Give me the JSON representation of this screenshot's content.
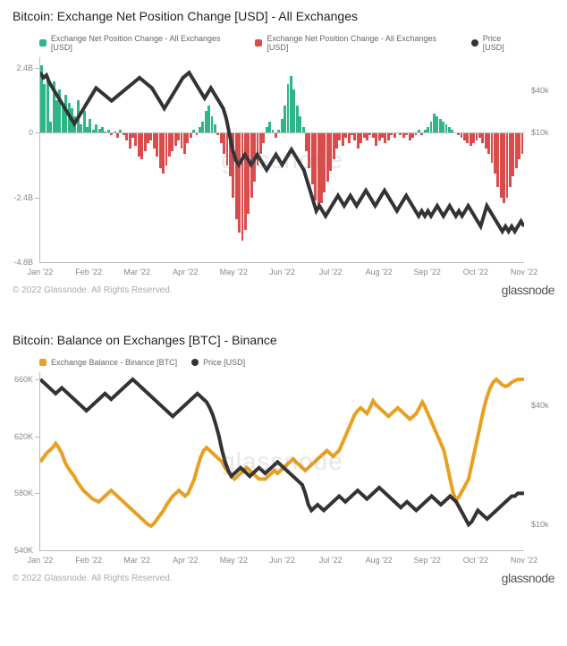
{
  "chart1": {
    "title": "Bitcoin: Exchange Net Position Change [USD] - All Exchanges",
    "legend": [
      {
        "label": "Exchange Net Position Change - All Exchanges [USD]",
        "color": "#2fb58a",
        "shape": "square"
      },
      {
        "label": "Exchange Net Position Change - All Exchanges [USD]",
        "color": "#d94c4c",
        "shape": "square"
      },
      {
        "label": "Price [USD]",
        "color": "#333333",
        "shape": "circle"
      }
    ],
    "y_left": {
      "min": -4.8,
      "max": 2.8,
      "ticks": [
        2.4,
        0,
        -2.4,
        -4.8
      ],
      "tick_labels": [
        "2.4B",
        "0",
        "-2.4B",
        "-4.8B"
      ],
      "zero": 0
    },
    "y_right": {
      "ticks": [
        1.58,
        0.0
      ],
      "tick_labels": [
        "$40k",
        "$10k"
      ]
    },
    "x_labels": [
      "Jan '22",
      "Feb '22",
      "Mar '22",
      "Apr '22",
      "May '22",
      "Jun '22",
      "Jul '22",
      "Aug '22",
      "Sep '22",
      "Oct '22",
      "Nov '22"
    ],
    "bars": [
      2.5,
      1.8,
      2.0,
      0.4,
      1.9,
      1.2,
      1.6,
      1.0,
      1.4,
      1.1,
      0.9,
      0.6,
      1.2,
      0.3,
      0.8,
      0.2,
      0.5,
      0.1,
      0.3,
      0.15,
      0.2,
      0.05,
      0.1,
      -0.1,
      0.05,
      -0.2,
      0.1,
      -0.1,
      -0.3,
      -0.6,
      -0.2,
      -0.5,
      -0.9,
      -1.0,
      -0.7,
      -0.4,
      -0.3,
      -0.6,
      -0.9,
      -1.3,
      -1.5,
      -1.2,
      -0.9,
      -0.7,
      -0.5,
      -0.3,
      -0.6,
      -0.8,
      -0.4,
      -0.2,
      0.1,
      -0.1,
      0.2,
      0.4,
      0.8,
      1.0,
      0.6,
      0.3,
      -0.1,
      -0.4,
      -0.8,
      -1.2,
      -1.6,
      -2.4,
      -3.2,
      -3.7,
      -4.0,
      -3.6,
      -3.0,
      -2.4,
      -1.8,
      -1.2,
      -0.8,
      -0.4,
      0.2,
      0.4,
      0.1,
      -0.2,
      0.1,
      0.5,
      1.0,
      1.8,
      2.1,
      1.6,
      1.0,
      0.6,
      0.2,
      -0.7,
      -1.3,
      -1.9,
      -2.5,
      -2.8,
      -2.6,
      -2.2,
      -1.8,
      -1.4,
      -1.0,
      -0.6,
      -0.3,
      -0.5,
      -0.2,
      -0.4,
      -0.1,
      -0.3,
      -0.6,
      -0.4,
      -0.2,
      -0.3,
      -0.1,
      -0.2,
      -0.5,
      -0.3,
      -0.2,
      -0.4,
      -0.3,
      -0.1,
      -0.2,
      0.0,
      -0.1,
      -0.2,
      -0.1,
      -0.3,
      -0.2,
      -0.1,
      0.1,
      -0.1,
      0.1,
      0.2,
      0.4,
      0.7,
      0.6,
      0.5,
      0.4,
      0.3,
      0.2,
      0.1,
      0.0,
      -0.1,
      -0.2,
      -0.3,
      -0.4,
      -0.5,
      -0.4,
      -0.3,
      -0.2,
      -0.4,
      -0.6,
      -0.8,
      -1.1,
      -1.5,
      -2.0,
      -2.4,
      -2.6,
      -2.4,
      -2.0,
      -1.6,
      -1.3,
      -1.0,
      -0.8
    ],
    "price": [
      47,
      46,
      46.5,
      45,
      44,
      43,
      42,
      41,
      40,
      39,
      38,
      37,
      38,
      39,
      40,
      41,
      42,
      43,
      44,
      43.5,
      43,
      42.5,
      42,
      41.5,
      42,
      42.5,
      43,
      43.5,
      44,
      44.5,
      45,
      45.5,
      46,
      45.5,
      45,
      44.5,
      44,
      43,
      42,
      41,
      40,
      41,
      42,
      43,
      44,
      45,
      46,
      46.5,
      47,
      46,
      45,
      44,
      43,
      42,
      43,
      44,
      43,
      42,
      41,
      40,
      38,
      35,
      32,
      30,
      29,
      30,
      31,
      30,
      29,
      30,
      31,
      30,
      29,
      28,
      29,
      30,
      31,
      30,
      29,
      30,
      31,
      32,
      31,
      30,
      29,
      28,
      26,
      24,
      22,
      20,
      21,
      20,
      19,
      20,
      21,
      22,
      23,
      22,
      21,
      22,
      23,
      22,
      21,
      22,
      23,
      24,
      23,
      22,
      21,
      22,
      23,
      24,
      23,
      22,
      21,
      20,
      21,
      22,
      23,
      22,
      21,
      20,
      19,
      20,
      19,
      20,
      19,
      20,
      21,
      20,
      19,
      20,
      21,
      20,
      19,
      20,
      19,
      20,
      21,
      20,
      19,
      18,
      17,
      19,
      21,
      20,
      19,
      18,
      17,
      16,
      17,
      16,
      17,
      16,
      17,
      18,
      17
    ],
    "price_range": {
      "min": 10,
      "max": 50
    },
    "bar_color_pos": "#2fb58a",
    "bar_color_neg": "#d94c4c",
    "line_color": "#333333",
    "background": "#ffffff",
    "watermark": "glassnode"
  },
  "chart2": {
    "title": "Bitcoin: Balance on Exchanges [BTC] - Binance",
    "legend": [
      {
        "label": "Exchange Balance - Binance [BTC]",
        "color": "#e8a023",
        "shape": "square"
      },
      {
        "label": "Price [USD]",
        "color": "#333333",
        "shape": "circle"
      }
    ],
    "y_left": {
      "min": 540,
      "max": 665,
      "ticks": [
        660,
        620,
        580,
        540
      ],
      "tick_labels": [
        "660K",
        "620K",
        "580K",
        "540K"
      ]
    },
    "y_right": {
      "ticks": [
        642,
        558
      ],
      "tick_labels": [
        "$40k",
        "$10k"
      ]
    },
    "x_labels": [
      "Jan '22",
      "Feb '22",
      "Mar '22",
      "Apr '22",
      "May '22",
      "Jun '22",
      "Jul '22",
      "Aug '22",
      "Sep '22",
      "Oct '22",
      "Nov '22"
    ],
    "series_balance": [
      602,
      605,
      608,
      610,
      612,
      615,
      612,
      608,
      602,
      598,
      595,
      592,
      588,
      585,
      582,
      580,
      578,
      576,
      575,
      574,
      576,
      578,
      580,
      582,
      580,
      578,
      576,
      574,
      572,
      570,
      568,
      566,
      564,
      562,
      560,
      558,
      557,
      559,
      562,
      565,
      568,
      572,
      575,
      578,
      580,
      582,
      580,
      578,
      580,
      585,
      590,
      598,
      605,
      610,
      612,
      610,
      608,
      606,
      604,
      602,
      598,
      595,
      592,
      590,
      592,
      594,
      596,
      598,
      596,
      594,
      592,
      590,
      590,
      590,
      592,
      594,
      596,
      594,
      596,
      598,
      600,
      602,
      604,
      602,
      600,
      598,
      596,
      598,
      600,
      602,
      604,
      606,
      608,
      610,
      608,
      606,
      608,
      610,
      615,
      620,
      625,
      630,
      635,
      638,
      640,
      638,
      636,
      640,
      645,
      642,
      640,
      638,
      636,
      634,
      636,
      638,
      640,
      638,
      636,
      634,
      632,
      634,
      636,
      640,
      644,
      640,
      635,
      630,
      625,
      620,
      615,
      610,
      600,
      590,
      580,
      575,
      578,
      582,
      586,
      590,
      600,
      610,
      620,
      630,
      640,
      648,
      654,
      658,
      660,
      658,
      656,
      655,
      656,
      658,
      659,
      660,
      660,
      660
    ],
    "series_price": [
      660,
      658,
      656,
      654,
      652,
      650,
      652,
      654,
      652,
      650,
      648,
      646,
      644,
      642,
      640,
      638,
      640,
      642,
      644,
      646,
      648,
      650,
      648,
      646,
      648,
      650,
      652,
      654,
      656,
      658,
      660,
      658,
      656,
      654,
      652,
      650,
      648,
      646,
      644,
      642,
      640,
      638,
      636,
      634,
      636,
      638,
      640,
      642,
      644,
      646,
      648,
      650,
      648,
      646,
      644,
      640,
      635,
      628,
      620,
      610,
      602,
      596,
      592,
      594,
      596,
      598,
      596,
      594,
      592,
      594,
      596,
      598,
      596,
      594,
      596,
      598,
      600,
      602,
      600,
      598,
      596,
      594,
      592,
      590,
      588,
      586,
      580,
      572,
      568,
      570,
      572,
      570,
      568,
      570,
      572,
      574,
      576,
      578,
      576,
      574,
      576,
      578,
      580,
      582,
      580,
      578,
      576,
      578,
      580,
      582,
      584,
      582,
      580,
      578,
      576,
      574,
      572,
      570,
      572,
      574,
      572,
      570,
      568,
      570,
      572,
      574,
      576,
      578,
      576,
      574,
      572,
      574,
      576,
      578,
      576,
      574,
      570,
      566,
      562,
      558,
      560,
      564,
      568,
      566,
      564,
      562,
      564,
      566,
      568,
      570,
      572,
      574,
      576,
      578,
      578,
      580,
      580,
      580
    ],
    "line1_color": "#e8a023",
    "line2_color": "#333333",
    "background": "#ffffff",
    "watermark": "glassnode"
  },
  "footer": {
    "copyright": "© 2022 Glassnode. All Rights Reserved.",
    "brand": "glassnode"
  }
}
